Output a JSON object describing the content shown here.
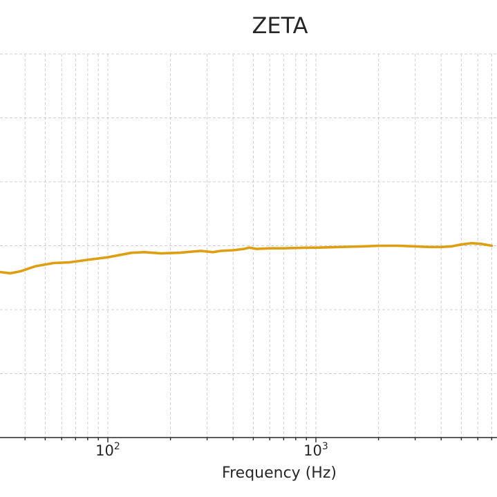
{
  "chart_data": {
    "type": "line",
    "title": "ZETA",
    "xlabel": "Frequency (Hz)",
    "ylabel": "",
    "xscale": "log",
    "xlim": [
      20,
      20000
    ],
    "ylim": [
      -30,
      30
    ],
    "grid": true,
    "line_color": "#DE9E12",
    "x_major_ticks": [
      {
        "value": 100,
        "base": "10",
        "exp": "2"
      },
      {
        "value": 1000,
        "base": "10",
        "exp": "3"
      }
    ],
    "series": [
      {
        "values": [
          [
            20,
            -2.5
          ],
          [
            25,
            -3.5
          ],
          [
            30,
            -4.1
          ],
          [
            34,
            -4.3
          ],
          [
            38,
            -4.0
          ],
          [
            45,
            -3.2
          ],
          [
            55,
            -2.7
          ],
          [
            65,
            -2.6
          ],
          [
            80,
            -2.2
          ],
          [
            100,
            -1.8
          ],
          [
            130,
            -1.1
          ],
          [
            150,
            -1.0
          ],
          [
            180,
            -1.2
          ],
          [
            220,
            -1.1
          ],
          [
            280,
            -0.8
          ],
          [
            320,
            -1.0
          ],
          [
            350,
            -0.8
          ],
          [
            400,
            -0.7
          ],
          [
            450,
            -0.5
          ],
          [
            480,
            -0.3
          ],
          [
            520,
            -0.5
          ],
          [
            600,
            -0.4
          ],
          [
            700,
            -0.4
          ],
          [
            900,
            -0.3
          ],
          [
            1000,
            -0.3
          ],
          [
            1300,
            -0.2
          ],
          [
            1700,
            -0.1
          ],
          [
            2000,
            0.0
          ],
          [
            2500,
            0.0
          ],
          [
            3000,
            -0.1
          ],
          [
            3500,
            -0.2
          ],
          [
            4000,
            -0.2
          ],
          [
            4500,
            -0.1
          ],
          [
            5000,
            0.2
          ],
          [
            5600,
            0.4
          ],
          [
            6200,
            0.3
          ],
          [
            7000,
            0.0
          ]
        ]
      }
    ]
  }
}
